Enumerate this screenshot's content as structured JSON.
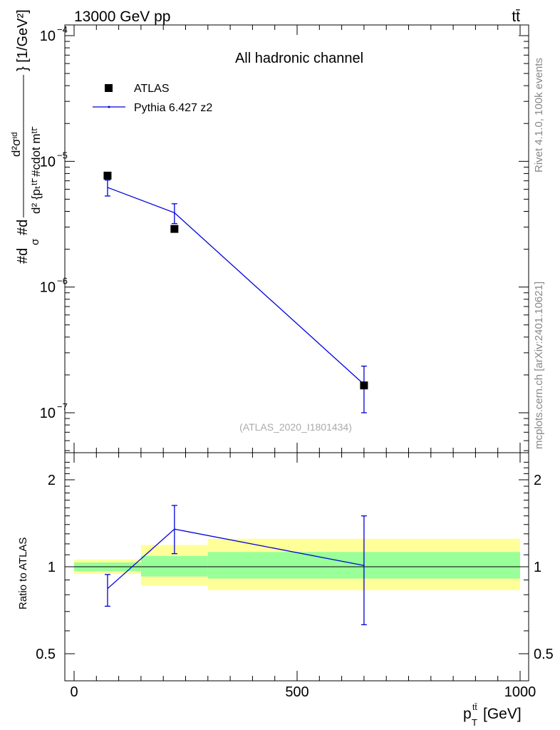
{
  "header": {
    "energy_label": "13000 GeV pp",
    "process_label": "tt̄"
  },
  "side_labels": {
    "rivet": "Rivet 4.1.0,  100k events",
    "site": "mcplots.cern.ch [arXiv:2401.10621]"
  },
  "colors": {
    "mc_line": "#0000dd",
    "data_marker": "#000000",
    "band_inner": "#99ff99",
    "band_outer": "#ffff99",
    "axis": "#000000",
    "ref_label": "#aaaaaa"
  },
  "chart_data": [
    {
      "type": "scatter",
      "title": "All hadronic channel",
      "ylabel_parts": {
        "num1": "#d",
        "den1": "σ",
        "mid": "#d",
        "num2": "d²σᶦᵈ",
        "den2": "d² {pₜᵗᵗ̄ #cdot mᵗᵗ̄",
        "tail": "} [1/GeV²]"
      },
      "y_scale": "log",
      "ylim": [
        5e-08,
        0.00014
      ],
      "xlim": [
        -20,
        1020
      ],
      "y_tick_labels": [
        {
          "value": 1e-07,
          "base": "10",
          "exp": "−7"
        },
        {
          "value": 1e-06,
          "base": "10",
          "exp": "−6"
        },
        {
          "value": 1e-05,
          "base": "10",
          "exp": "−5"
        },
        {
          "value": 0.0001,
          "base": "10",
          "exp": "−4"
        }
      ],
      "legend": [
        {
          "label": "ATLAS",
          "kind": "marker"
        },
        {
          "label": "Pythia 6.427 z2",
          "kind": "line"
        }
      ],
      "reference_label": "(ATLAS_2020_I1801434)",
      "series": [
        {
          "name": "ATLAS",
          "points": [
            {
              "x": 75,
              "y": 7.7e-06
            },
            {
              "x": 225,
              "y": 2.9e-06
            },
            {
              "x": 650,
              "y": 1.65e-07
            }
          ]
        },
        {
          "name": "Pythia 6.427 z2",
          "points": [
            {
              "x": 75,
              "y": 6.2e-06,
              "ylo": 5.3e-06,
              "yhi": 7.1e-06
            },
            {
              "x": 225,
              "y": 3.9e-06,
              "ylo": 3.2e-06,
              "yhi": 4.6e-06
            },
            {
              "x": 650,
              "y": 1.68e-07,
              "ylo": 1e-07,
              "yhi": 2.35e-07
            }
          ]
        }
      ]
    },
    {
      "type": "line",
      "ylabel": "Ratio to ATLAS",
      "xlabel_main": "p",
      "xlabel_sub": "T",
      "xlabel_sup": "tt̄",
      "xlabel_unit": " [GeV]",
      "y_scale": "log",
      "ylim": [
        0.42,
        2.4
      ],
      "xlim": [
        -20,
        1020
      ],
      "y_tick_labels": [
        {
          "value": 0.5,
          "label": "0.5"
        },
        {
          "value": 1,
          "label": "1"
        },
        {
          "value": 2,
          "label": "2"
        }
      ],
      "x_tick_labels": [
        {
          "value": 0,
          "label": "0"
        },
        {
          "value": 500,
          "label": "500"
        },
        {
          "value": 1000,
          "label": "1000"
        }
      ],
      "bands": [
        {
          "x0": 0,
          "x1": 150,
          "inner": [
            0.965,
            1.035
          ],
          "outer": [
            0.945,
            1.06
          ]
        },
        {
          "x0": 150,
          "x1": 300,
          "inner": [
            0.925,
            1.09
          ],
          "outer": [
            0.86,
            1.19
          ]
        },
        {
          "x0": 300,
          "x1": 1000,
          "inner": [
            0.91,
            1.125
          ],
          "outer": [
            0.83,
            1.25
          ]
        }
      ],
      "series": [
        {
          "name": "Pythia 6.427 z2",
          "points": [
            {
              "x": 75,
              "y": 0.84,
              "ylo": 0.73,
              "yhi": 0.94
            },
            {
              "x": 225,
              "y": 1.35,
              "ylo": 1.11,
              "yhi": 1.63
            },
            {
              "x": 650,
              "y": 1.01,
              "ylo": 0.63,
              "yhi": 1.5
            }
          ]
        }
      ]
    }
  ]
}
